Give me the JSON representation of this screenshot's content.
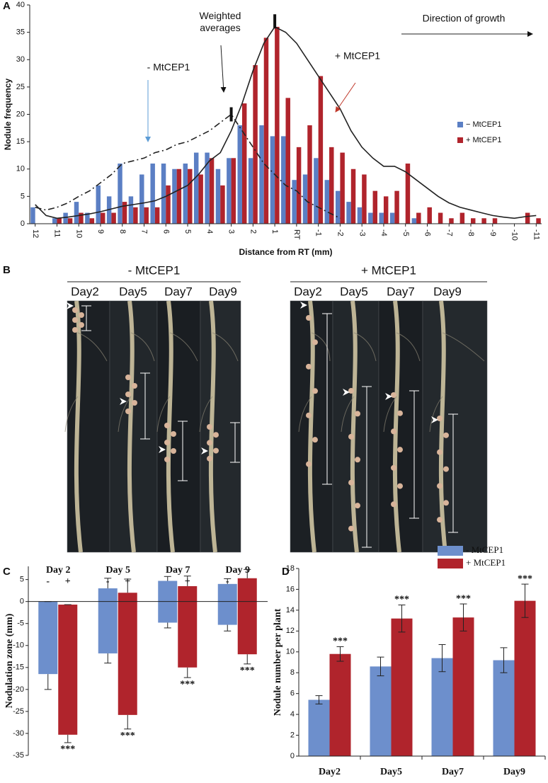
{
  "chart_data": [
    {
      "type": "bar",
      "panel": "A",
      "ylabel": "Nodule frequency",
      "xlabel": "Distance from RT (mm)",
      "categories": [
        "12",
        null,
        "11",
        null,
        "10",
        null,
        "9",
        null,
        "8",
        null,
        "7",
        null,
        "6",
        null,
        "5",
        null,
        "4",
        null,
        "3",
        null,
        "2",
        null,
        "1",
        null,
        "RT",
        null,
        "-1",
        null,
        "-2",
        null,
        "-3",
        null,
        "-4",
        null,
        "-5",
        null,
        "-6",
        null,
        "-7",
        null,
        "-8",
        null,
        "-9",
        null,
        "-10",
        null,
        "-11"
      ],
      "series": [
        {
          "name": "− MtCEP1",
          "color": "#5b7fc4",
          "values": [
            3,
            0,
            1,
            2,
            4,
            2,
            7,
            5,
            11,
            5,
            9,
            11,
            11,
            10,
            11,
            13,
            13,
            10,
            12,
            18,
            12,
            18,
            16,
            16,
            8,
            9,
            12,
            8,
            6,
            4,
            3,
            2,
            2,
            2,
            0,
            1,
            0,
            0,
            0,
            0,
            0,
            0,
            0,
            0,
            0,
            0,
            0
          ]
        },
        {
          "name": "+ MtCEP1",
          "color": "#b0242c",
          "values": [
            0,
            0,
            1,
            1,
            2,
            1,
            2,
            2,
            4,
            3,
            3,
            3,
            7,
            10,
            10,
            9,
            12,
            7,
            12,
            22,
            29,
            34,
            36,
            23,
            14,
            18,
            27,
            14,
            13,
            10,
            9,
            6,
            5,
            6,
            11,
            2,
            3,
            2,
            1,
            2,
            1,
            1,
            1,
            0,
            0,
            2,
            1
          ]
        }
      ],
      "curves": [
        {
          "color": "#222",
          "dashed": true,
          "values": [
            3,
            2.5,
            3,
            3.8,
            5,
            6,
            7.5,
            9,
            11,
            11.5,
            12,
            13,
            13.5,
            14.5,
            15,
            16,
            17,
            18.5,
            20,
            17,
            14,
            11,
            9,
            7,
            6,
            4,
            3,
            2,
            1,
            null,
            null,
            null,
            null,
            null,
            null,
            null,
            null,
            null,
            null,
            null,
            null,
            null,
            null,
            null,
            null,
            null,
            null
          ]
        },
        {
          "color": "#222",
          "dashed": false,
          "values": [
            3.5,
            1.5,
            1,
            1.2,
            1.5,
            1.8,
            2.2,
            2.7,
            3.2,
            3.5,
            3.8,
            4.2,
            5,
            6,
            7,
            9,
            11.5,
            13,
            17,
            22,
            28,
            33,
            36,
            35,
            33,
            30,
            27,
            24,
            21,
            17,
            14,
            12,
            10.5,
            10.5,
            9.5,
            8,
            6.5,
            5,
            3.8,
            3,
            2.5,
            2,
            1.5,
            1.2,
            1,
            1.3,
            1.5
          ]
        }
      ],
      "weighted_averages": [
        {
          "x": "3",
          "y": 20
        },
        {
          "x": "1",
          "y": 37
        }
      ],
      "annotations": [
        "Weighted averages",
        "- MtCEP1",
        "+ MtCEP1",
        "Direction of growth"
      ],
      "ylim": [
        0,
        40
      ],
      "yticks": [
        0,
        5,
        10,
        15,
        20,
        25,
        30,
        35,
        40
      ],
      "legend": "right"
    },
    {
      "type": "floating_bar",
      "panel": "C",
      "ylabel": "Nodulation zone (mm)",
      "categories": [
        "Day 2",
        "Day 5",
        "Day 7",
        "Day 9"
      ],
      "series": [
        {
          "name": "-",
          "color": "#6d8fcc",
          "low": [
            -16.5,
            -11.8,
            -4.8,
            -5.3
          ],
          "high": [
            0,
            3,
            4.7,
            4
          ],
          "low_err": [
            3.5,
            2.2,
            1.2,
            1.4
          ],
          "high_err": [
            0,
            2.3,
            1,
            1.2
          ]
        },
        {
          "name": "+",
          "color": "#b0242c",
          "low": [
            -30.3,
            -25.8,
            -15,
            -12
          ],
          "high": [
            -0.7,
            2,
            3.5,
            5.3
          ],
          "low_err": [
            1.8,
            3.2,
            2.3,
            2.2
          ],
          "high_err": [
            0,
            3.1,
            2.3,
            2
          ]
        }
      ],
      "significance": [
        "***",
        "***",
        "***",
        "***"
      ],
      "ylim": [
        -35,
        8
      ],
      "yticks": [
        5,
        0,
        -5,
        -10,
        -15,
        -20,
        -25,
        -30,
        -35
      ]
    },
    {
      "type": "bar",
      "panel": "D",
      "ylabel": "Nodule number per plant",
      "categories": [
        "Day2",
        "Day5",
        "Day7",
        "Day9"
      ],
      "series": [
        {
          "name": "- MtCEP1",
          "color": "#6d8fcc",
          "values": [
            5.4,
            8.6,
            9.4,
            9.2
          ],
          "errors": [
            0.4,
            0.9,
            1.3,
            1.2
          ]
        },
        {
          "name": "+ MtCEP1",
          "color": "#b0242c",
          "values": [
            9.8,
            13.2,
            13.3,
            14.9
          ],
          "errors": [
            0.7,
            1.3,
            1.3,
            1.6
          ]
        }
      ],
      "significance": [
        "***",
        "***",
        "***",
        "***"
      ],
      "ylim": [
        0,
        18
      ],
      "yticks": [
        0,
        2,
        4,
        6,
        8,
        10,
        12,
        14,
        16,
        18
      ],
      "legend": "top-right"
    }
  ],
  "panel_b": {
    "panel": "B",
    "groups": [
      {
        "title": "- MtCEP1",
        "days": [
          "Day2",
          "Day5",
          "Day7",
          "Day9"
        ]
      },
      {
        "title": "+ MtCEP1",
        "days": [
          "Day2",
          "Day5",
          "Day7",
          "Day9"
        ]
      }
    ]
  }
}
